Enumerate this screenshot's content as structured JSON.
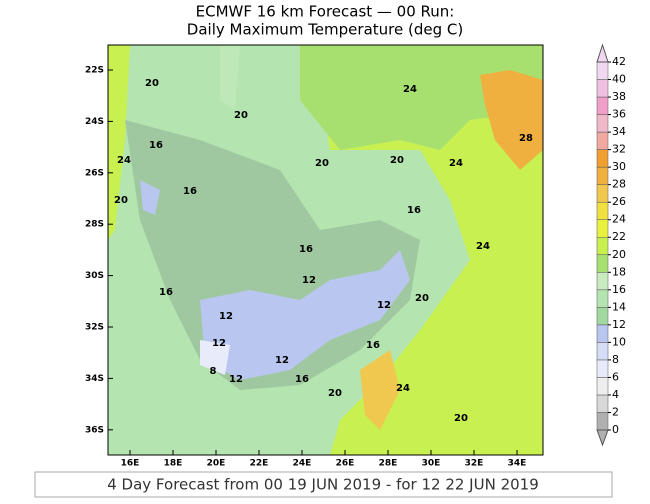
{
  "title_line1": "ECMWF 16 km Forecast — 00 Run:",
  "title_line2": "Daily Maximum Temperature (deg C)",
  "lat_labels": [
    "22S",
    "24S",
    "26S",
    "28S",
    "30S",
    "32S",
    "34S",
    "36S"
  ],
  "lon_labels": [
    "16E",
    "18E",
    "20E",
    "22E",
    "24E",
    "26E",
    "28E",
    "30E",
    "32E",
    "34E"
  ],
  "contour_labels": [
    "20",
    "24",
    "20",
    "28",
    "16",
    "24",
    "20",
    "20",
    "24",
    "16",
    "20",
    "16",
    "16",
    "24",
    "12",
    "16",
    "20",
    "12",
    "12",
    "12",
    "16",
    "12",
    "8",
    "12",
    "16",
    "24",
    "20",
    "20"
  ],
  "colorbar": {
    "ticks": [
      0,
      2,
      4,
      6,
      8,
      10,
      12,
      14,
      16,
      18,
      20,
      22,
      24,
      26,
      28,
      30,
      32,
      34,
      36,
      38,
      40,
      42
    ],
    "colors": [
      "#b0b0b0",
      "#d8d8d8",
      "#eeeeee",
      "#e8ecfa",
      "#d4dcf6",
      "#b8c6f0",
      "#a0d8a0",
      "#b4e4b0",
      "#c8ecc0",
      "#a8e070",
      "#c8f050",
      "#e8f040",
      "#f0e040",
      "#f0c850",
      "#f0b040",
      "#f0a030",
      "#f0a8a0",
      "#f0b8c8",
      "#f0a0c8",
      "#f0c0e0",
      "#f0d8f0"
    ]
  },
  "footer": "4 Day Forecast from 00 19 JUN 2019 - for 12 22 JUN 2019"
}
